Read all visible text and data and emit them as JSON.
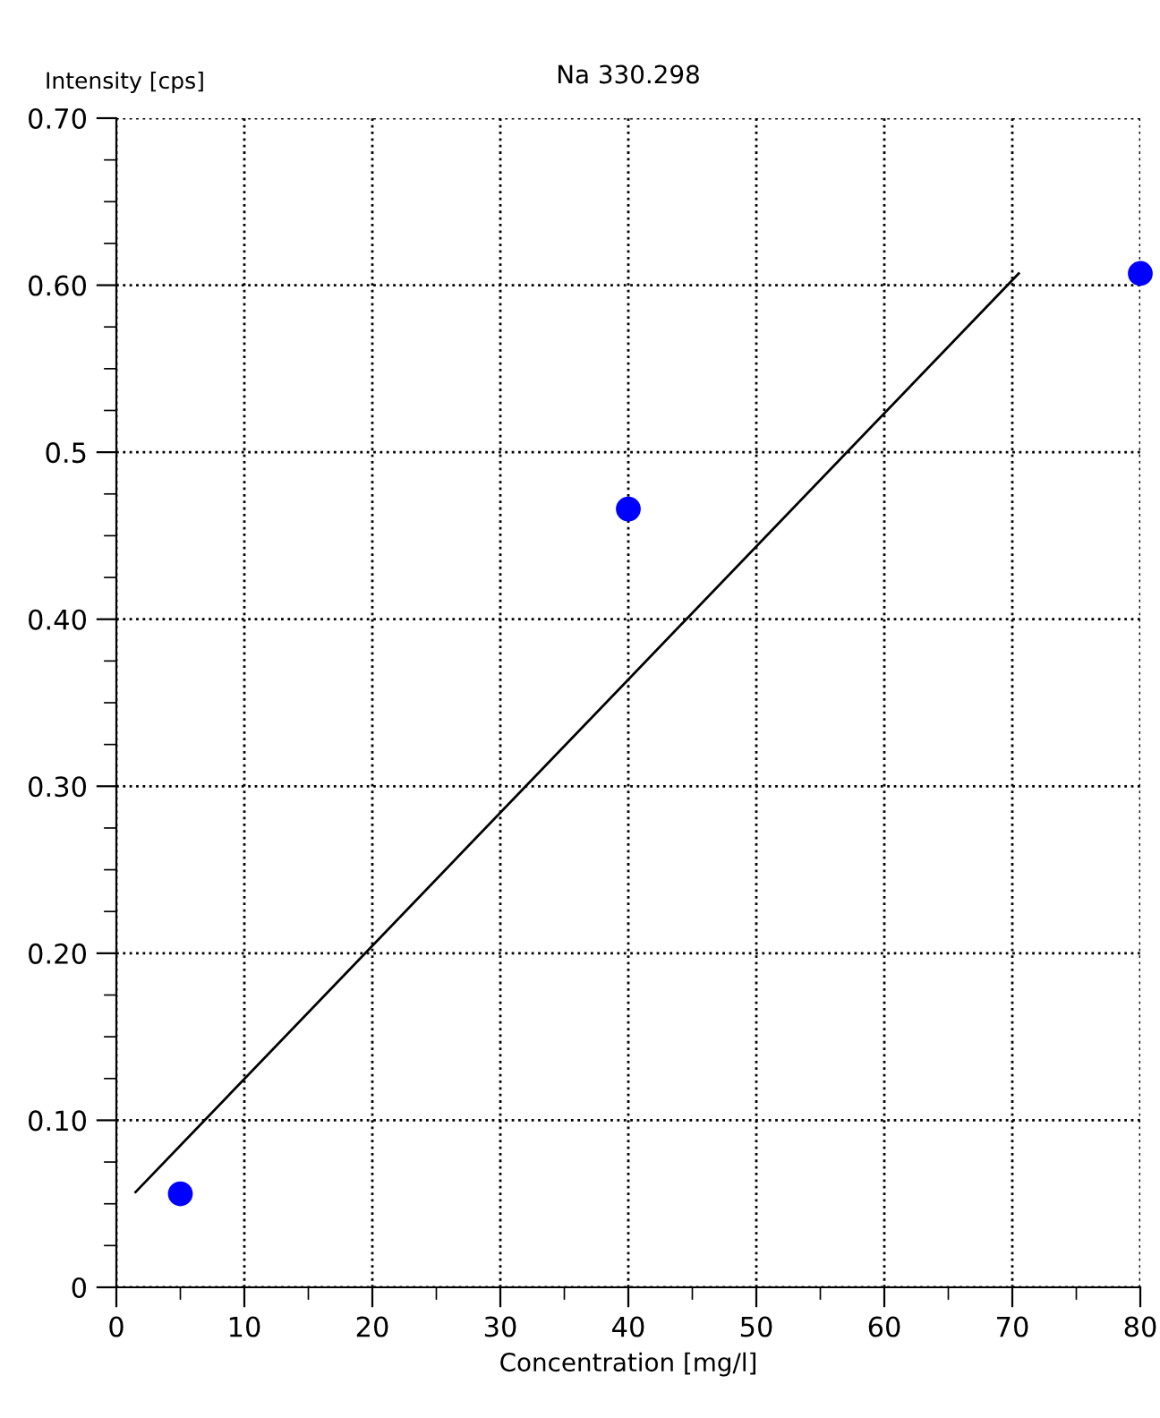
{
  "chart_data": {
    "type": "scatter",
    "title": "Na 330.298",
    "xlabel": "Concentration [mg/l]",
    "ylabel": "Intensity [cps]",
    "series": [
      {
        "color": "#0000ff",
        "marker": "circle",
        "x": [
          5,
          40,
          80
        ],
        "values": [
          0.056,
          0.466,
          0.607
        ]
      },
      {
        "type": "line",
        "color": "#000000",
        "marker": "none",
        "x": [
          1.5,
          70.5
        ],
        "values": [
          0.057,
          0.607
        ]
      }
    ],
    "xlim": [
      0,
      80
    ],
    "ylim": [
      0,
      0.7
    ],
    "xticks": [
      0,
      10,
      20,
      30,
      40,
      50,
      60,
      70,
      80
    ],
    "yticks": [
      0,
      {
        "value": 0.1,
        "label": "0.10"
      },
      {
        "value": 0.2,
        "label": "0.20"
      },
      {
        "value": 0.3,
        "label": "0.30"
      },
      {
        "value": 0.4,
        "label": "0.40"
      },
      0.5,
      {
        "value": 0.6,
        "label": "0.60"
      },
      {
        "value": 0.7,
        "label": "0.70"
      }
    ],
    "grid": true,
    "legend": false
  }
}
